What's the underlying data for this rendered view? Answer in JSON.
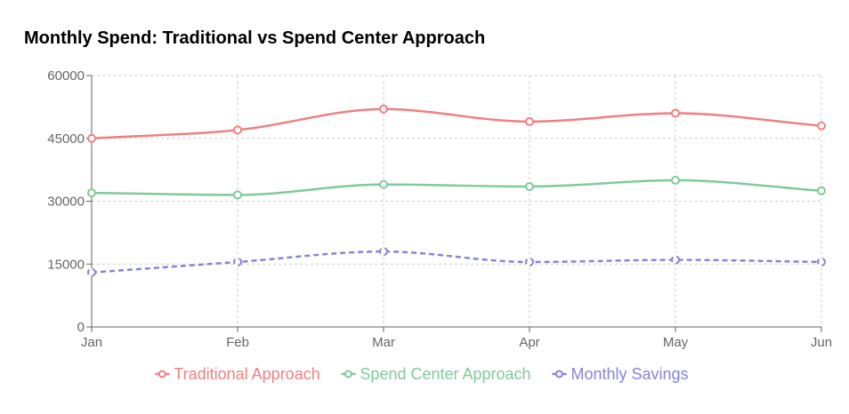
{
  "title": "Monthly Spend: Traditional vs Spend Center Approach",
  "colors": {
    "axis": "#666666",
    "grid": "#cccccc"
  },
  "chart_data": {
    "type": "line",
    "categories": [
      "Jan",
      "Feb",
      "Mar",
      "Apr",
      "May",
      "Jun"
    ],
    "ylim": [
      0,
      60000
    ],
    "yticks": [
      0,
      15000,
      30000,
      45000,
      60000
    ],
    "grid": true,
    "legend_position": "bottom",
    "series": [
      {
        "name": "Traditional Approach",
        "color": "#f08080",
        "dashed": false,
        "values": [
          45000,
          47000,
          52000,
          49000,
          51000,
          48000
        ]
      },
      {
        "name": "Spend Center Approach",
        "color": "#82c99b",
        "dashed": false,
        "values": [
          32000,
          31500,
          34000,
          33500,
          35000,
          32500
        ]
      },
      {
        "name": "Monthly Savings",
        "color": "#8884d8",
        "dashed": true,
        "values": [
          13000,
          15500,
          18000,
          15500,
          16000,
          15500
        ]
      }
    ]
  }
}
